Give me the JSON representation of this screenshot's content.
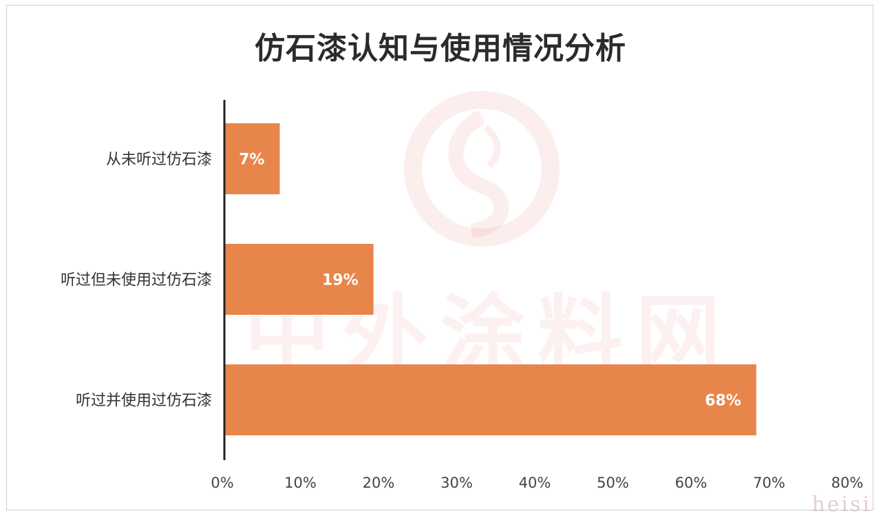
{
  "watermark": {
    "text": "中外涂料网",
    "corner": "heisi"
  },
  "colors": {
    "bar": "#E8854A",
    "axis": "#222222",
    "watermark": "#E8968C"
  },
  "chart_data": {
    "type": "bar",
    "orientation": "horizontal",
    "title": "仿石漆认知与使用情况分析",
    "categories": [
      "从未听过仿石漆",
      "听过但未使用过仿石漆",
      "听过并使用过仿石漆"
    ],
    "values": [
      7,
      19,
      68
    ],
    "value_labels": [
      "7%",
      "19%",
      "68%"
    ],
    "xlim": [
      0,
      80
    ],
    "x_ticks": [
      "0%",
      "10%",
      "20%",
      "30%",
      "40%",
      "50%",
      "60%",
      "70%",
      "80%"
    ],
    "xlabel": "",
    "ylabel": "",
    "grid": false,
    "legend": "none"
  }
}
